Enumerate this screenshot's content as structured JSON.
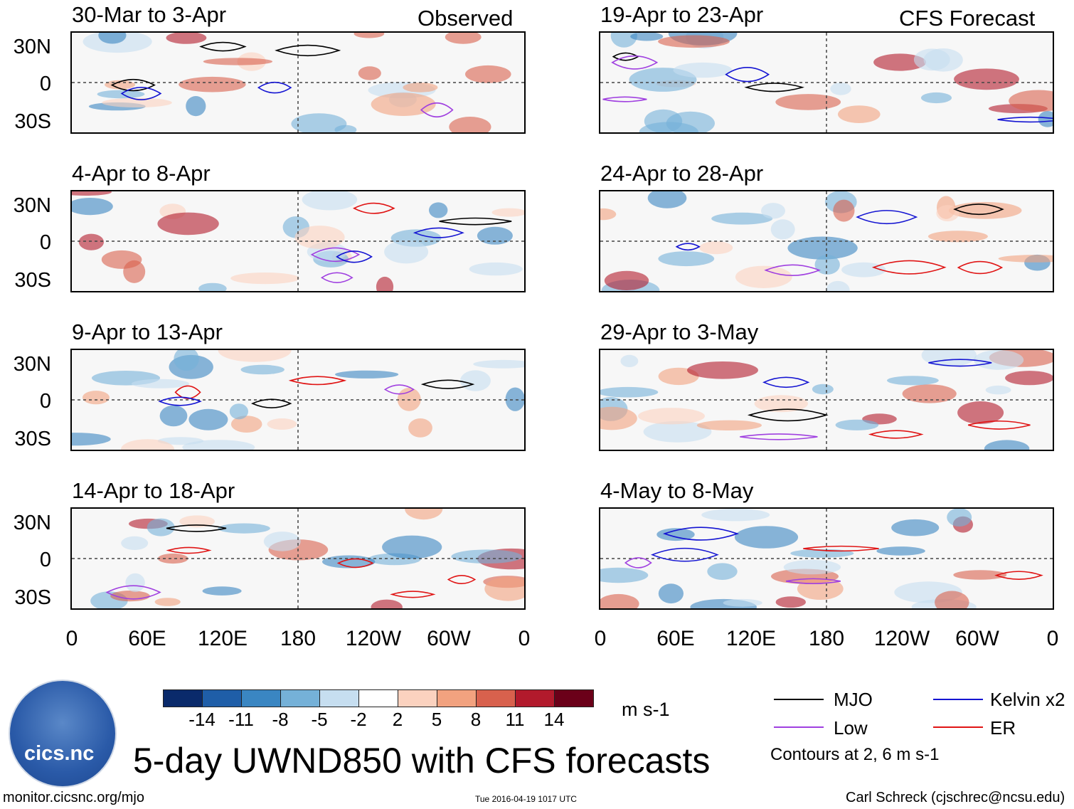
{
  "header": {
    "observed_label": "Observed",
    "forecast_label": "CFS Forecast"
  },
  "panels": {
    "left": [
      {
        "title": "30-Mar to 3-Apr"
      },
      {
        "title": "4-Apr to 8-Apr"
      },
      {
        "title": "9-Apr to 13-Apr"
      },
      {
        "title": "14-Apr to 18-Apr"
      }
    ],
    "right": [
      {
        "title": "19-Apr to 23-Apr"
      },
      {
        "title": "24-Apr to 28-Apr"
      },
      {
        "title": "29-Apr to 3-May"
      },
      {
        "title": "4-May to 8-May"
      }
    ]
  },
  "axes": {
    "lat_labels": [
      "30N",
      "0",
      "30S"
    ],
    "lon_labels": [
      "0",
      "60E",
      "120E",
      "180",
      "120W",
      "60W",
      "0"
    ]
  },
  "colorbar": {
    "ticks": [
      "-14",
      "-11",
      "-8",
      "-5",
      "-2",
      "2",
      "5",
      "8",
      "11",
      "14"
    ],
    "colors": [
      "#0a2a6b",
      "#1f5ea8",
      "#3a86c2",
      "#75b1d8",
      "#c6def0",
      "#ffffff",
      "#fbd2bf",
      "#f2a27f",
      "#d8614d",
      "#b21a2c",
      "#6b0019"
    ],
    "units": "m s-1"
  },
  "legend": {
    "items": [
      {
        "label": "MJO",
        "color": "#000000"
      },
      {
        "label": "Kelvin x2",
        "color": "#1414d2"
      },
      {
        "label": "Low",
        "color": "#a040e0"
      },
      {
        "label": "ER",
        "color": "#e01414"
      }
    ],
    "contour_note": "Contours at 2, 6 m s-1"
  },
  "title": "5-day UWND850 with CFS forecasts",
  "logo_text": "cics.nc",
  "footer": {
    "url": "monitor.cicsnc.org/mjo",
    "timestamp": "Tue 2016-04-19 1017 UTC",
    "author": "Carl Schreck (cjschrec@ncsu.edu)"
  }
}
